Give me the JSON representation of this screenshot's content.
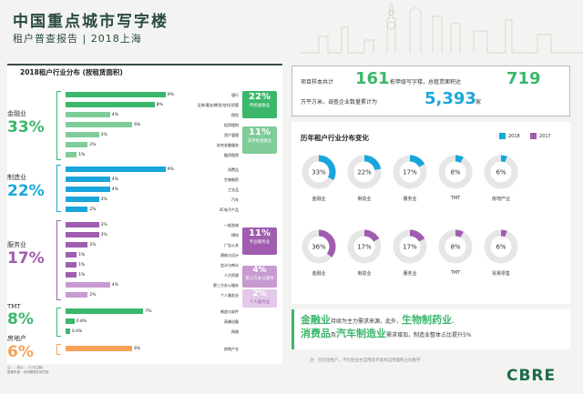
{
  "header": {
    "title": "中国重点城市写字楼",
    "subtitle": "租户普查报告 | 2018上海"
  },
  "left": {
    "title": "2018租户行业分布 (按租赁面积)",
    "sections": [
      {
        "name": "金融业",
        "pct": "33%"
      },
      {
        "name": "制造业",
        "pct": "22%"
      },
      {
        "name": "服务业",
        "pct": "17%"
      },
      {
        "name": "TMT",
        "pct": "8%"
      },
      {
        "name": "房地产",
        "pct": "6%"
      }
    ],
    "badges": [
      {
        "value": "22%",
        "label": "传统金融业"
      },
      {
        "value": "11%",
        "label": "非传统金融业"
      },
      {
        "value": "11%",
        "label": "专业服务业"
      },
      {
        "value": "4%",
        "label": "第三方办公服务"
      },
      {
        "value": "2%",
        "label": "个人服务业"
      }
    ],
    "footnote": [
      "注：...表示...（小字注释）",
      "数据来源：世邦魏理仕研究部"
    ]
  },
  "chart_data": {
    "type": "bar",
    "title": "2018租户行业分布 (按租赁面积)",
    "categories": [
      "银行",
      "证券/基金/期货/信托/资管",
      "保险",
      "投资理财",
      "资产管理",
      "综合金融服务",
      "融资租赁",
      "消费品",
      "生物制药",
      "工业品",
      "汽车",
      "3C电子产品",
      "一般咨询",
      "律所",
      "广告公关",
      "建筑与设计",
      "会计与审计",
      "人力资源",
      "第三方办公服务",
      "个人服务业",
      "制造与软件",
      "高端设备",
      "网络",
      "房地产业"
    ],
    "values": [
      9,
      8,
      4,
      6,
      3,
      2,
      1,
      9,
      4,
      4,
      3,
      2,
      3,
      3,
      2,
      1,
      1,
      1,
      4,
      2,
      7,
      0.8,
      0.4,
      6
    ],
    "labels": [
      "9%",
      "8%",
      "4%",
      "6%",
      "3%",
      "2%",
      "1%",
      "9%",
      "4%",
      "4%",
      "3%",
      "2%",
      "3%",
      "3%",
      "2%",
      "1%",
      "1%",
      "1%",
      "4%",
      "2%",
      "7%",
      "0.8%",
      "0.4%",
      "6%"
    ]
  },
  "summary": {
    "t1": "项目样本共计",
    "n1": "161",
    "t2": "栋甲级写字楼，总租赁面积达",
    "n2": "719",
    "t3": "万平方米，调查企业数量累计为",
    "n3": "5,393",
    "t4": "家"
  },
  "trend": {
    "title": "历年租户行业分布变化",
    "legend": [
      "2018",
      "2017"
    ],
    "row2018": [
      {
        "pct": "33%",
        "label": "金融业",
        "v": 33
      },
      {
        "pct": "22%",
        "label": "制造业",
        "v": 22
      },
      {
        "pct": "17%",
        "label": "服务业",
        "v": 17
      },
      {
        "pct": "8%",
        "label": "TMT",
        "v": 8
      },
      {
        "pct": "6%",
        "label": "房地产业",
        "v": 6
      }
    ],
    "row2017": [
      {
        "pct": "36%",
        "label": "金融业",
        "v": 36
      },
      {
        "pct": "17%",
        "label": "制造业",
        "v": 17
      },
      {
        "pct": "17%",
        "label": "服务业",
        "v": 17
      },
      {
        "pct": "8%",
        "label": "TMT",
        "v": 8
      },
      {
        "pct": "6%",
        "label": "贸易零售",
        "v": 6
      }
    ]
  },
  "bottom": {
    "g1": "金融业",
    "t1": "持续为主力需求来源，此外，",
    "g2": "生物制药业",
    "t2": "、",
    "g3": "消费品",
    "t3": "及",
    "g4": "汽车制造业",
    "t4": "需求增加，制造业整体占比提升5%"
  },
  "note": "注：仅包括租户，不包括业主自用及开发商自用面积占比数字",
  "logo": "CBRE",
  "colors": {
    "green": "#3bb76b",
    "blue": "#1aa6dc",
    "purple": "#a05db0",
    "orange": "#f7a256",
    "darkgreen": "#2a4a3e"
  }
}
